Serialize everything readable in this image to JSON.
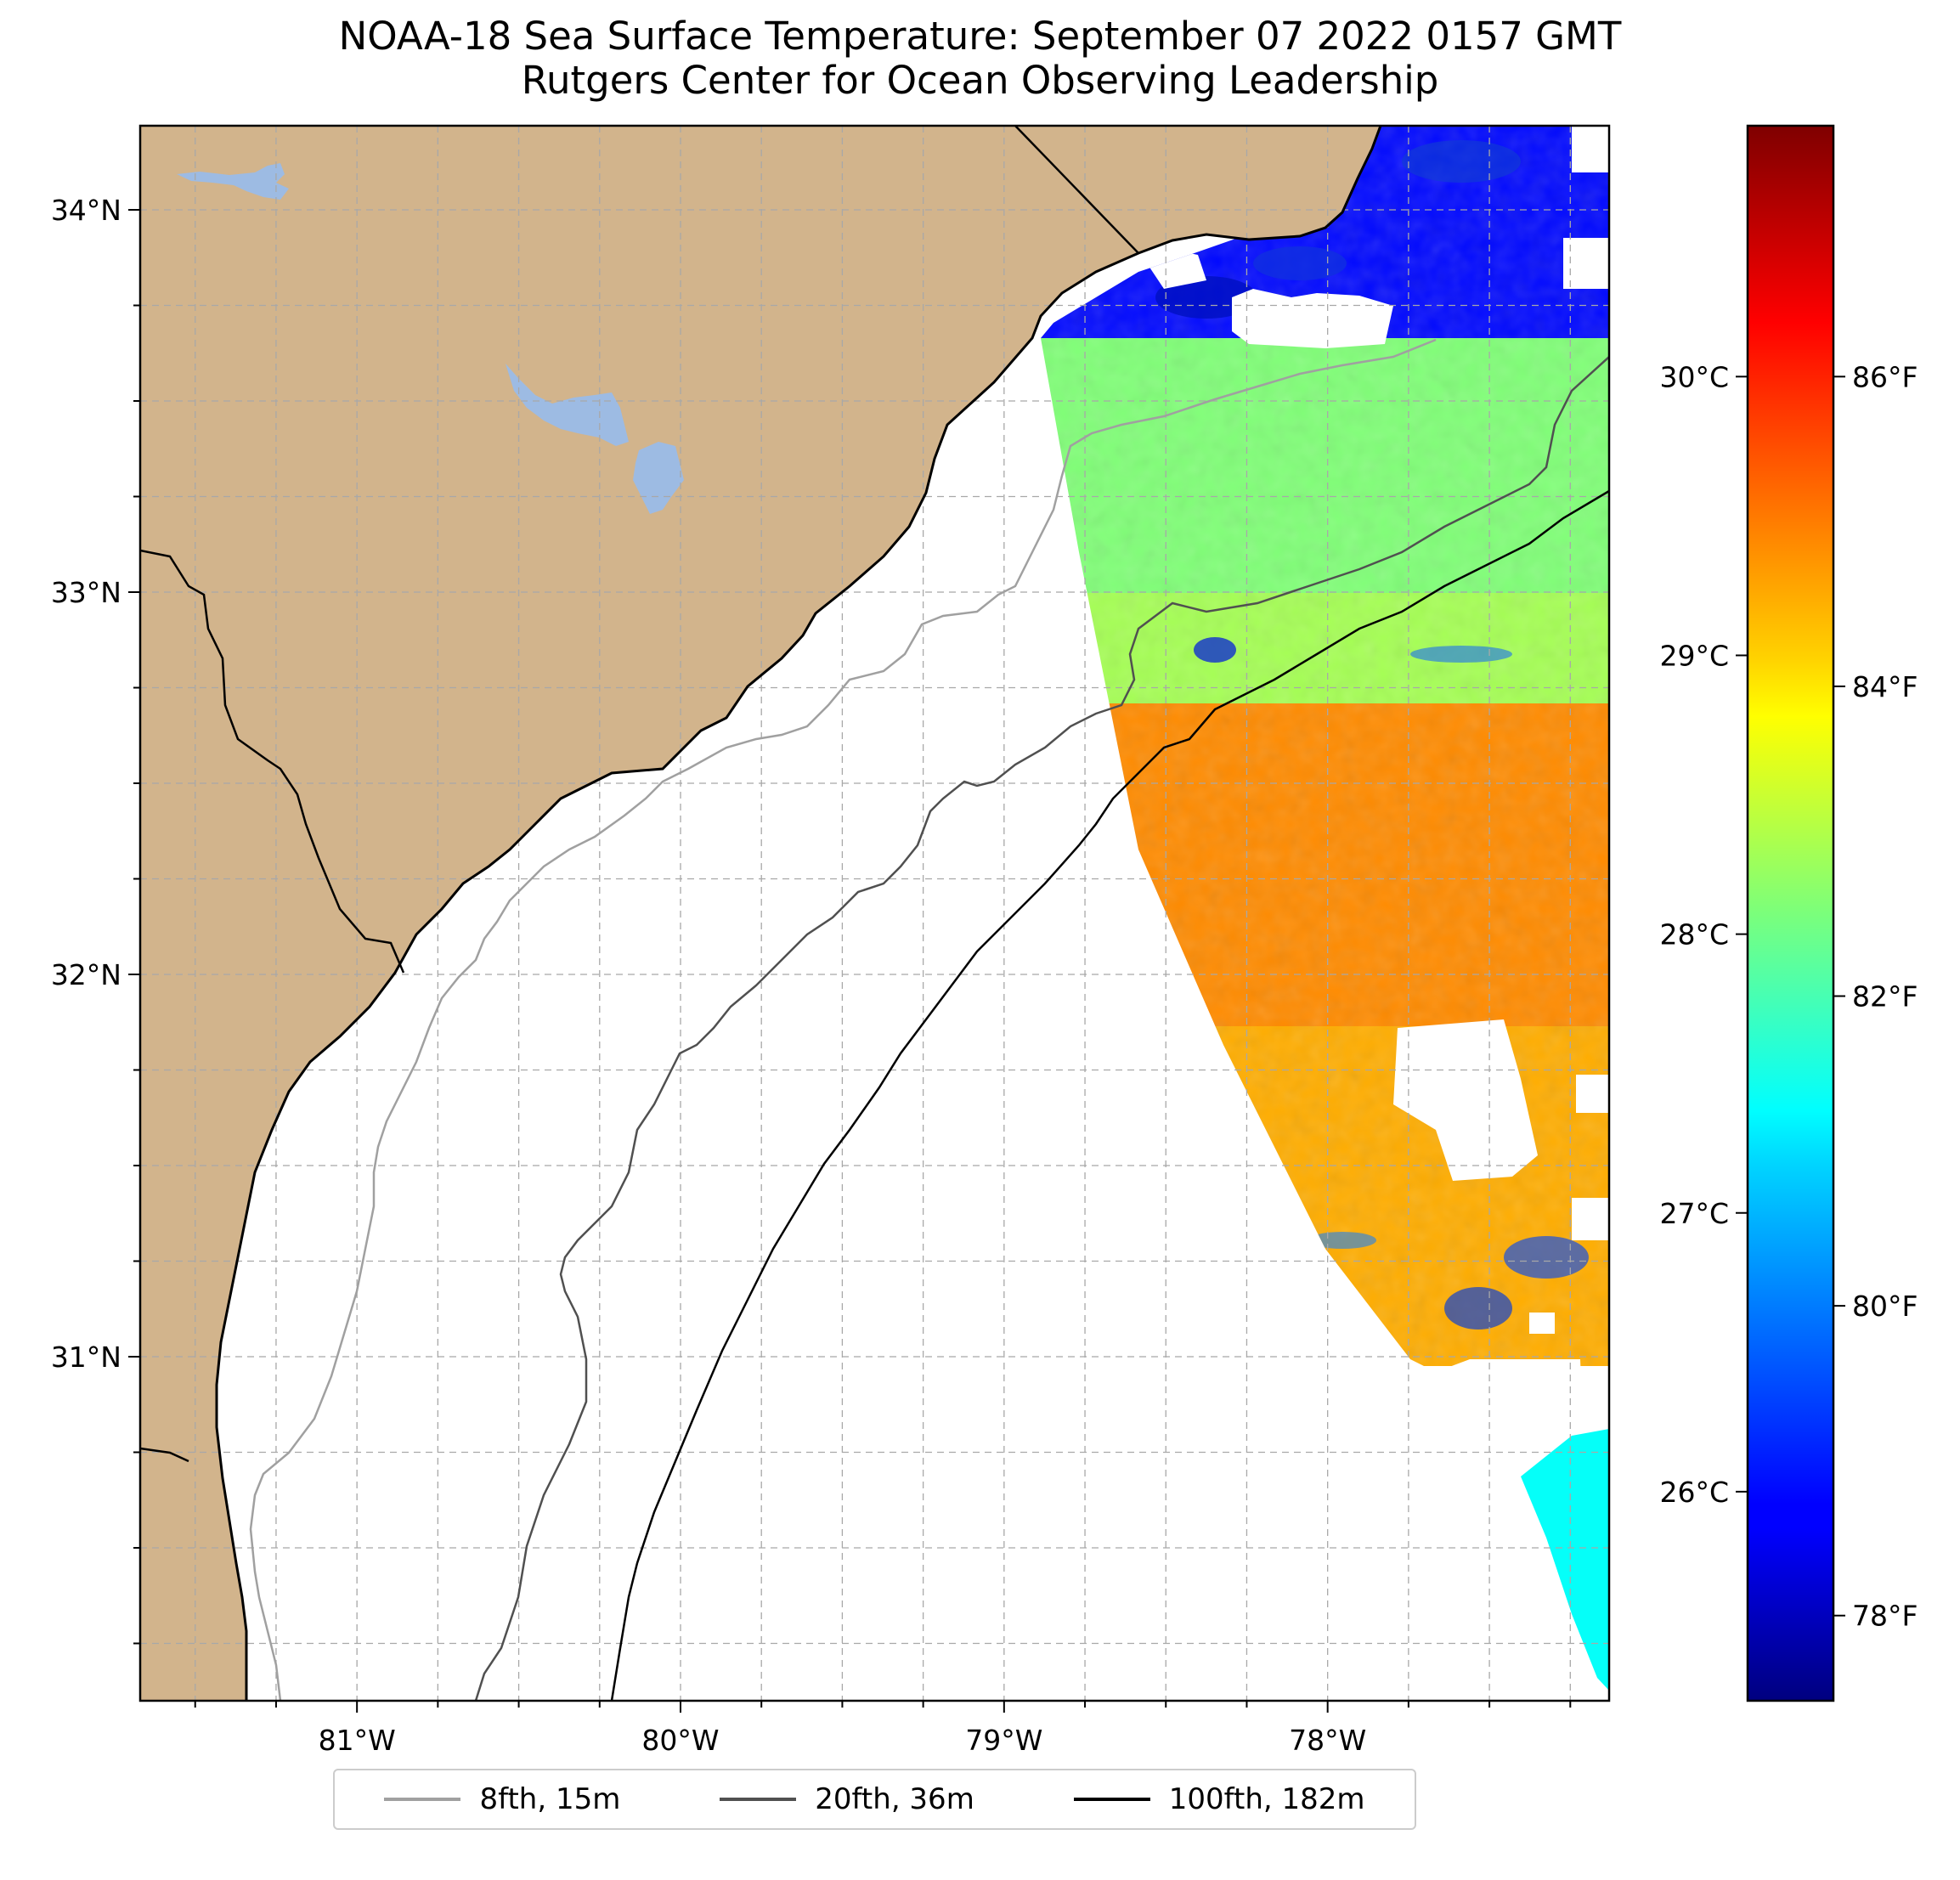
{
  "title": {
    "line1": "NOAA-18 Sea Surface Temperature: September 07 2022 0157 GMT",
    "line2": "Rutgers Center for Ocean Observing Leadership"
  },
  "colors": {
    "land": "#d2b48c",
    "lake": "#9dbbe3",
    "coast": "#000000",
    "grid": "#a8a8a8"
  },
  "chart_data": {
    "type": "heatmap",
    "title": "NOAA-18 Sea Surface Temperature: September 07 2022 0157 GMT",
    "subtitle": "Rutgers Center for Ocean Observing Leadership",
    "colormap": "jet",
    "map_extent": {
      "lon": [
        -81.67,
        -77.13
      ],
      "lat": [
        30.1,
        34.22
      ]
    },
    "x_ticks": [
      "81°W",
      "80°W",
      "79°W",
      "78°W"
    ],
    "x_tick_values": [
      -81,
      -80,
      -79,
      -78
    ],
    "y_ticks": [
      "34°N",
      "33°N",
      "32°N",
      "31°N"
    ],
    "y_tick_values": [
      34,
      33,
      32,
      31
    ],
    "colorbar_celsius_range": [
      25.25,
      30.9
    ],
    "colorbar_celsius_ticks": [
      "30°C",
      "29°C",
      "28°C",
      "27°C",
      "26°C"
    ],
    "colorbar_celsius_tick_values": [
      30,
      29,
      28,
      27,
      26
    ],
    "colorbar_fahrenheit_ticks": [
      "86°F",
      "84°F",
      "82°F",
      "80°F",
      "78°F"
    ],
    "colorbar_fahrenheit_tick_values": [
      86,
      84,
      82,
      80,
      78
    ],
    "sst_regions": [
      {
        "area": "nearshore north swath (lat > 33.5)",
        "temp_c": 26.0
      },
      {
        "area": "north swath (33.0–33.5)",
        "temp_c": 28.1
      },
      {
        "area": "central swath (32.6–33.0)",
        "temp_c": 28.3
      },
      {
        "area": "warm core (31.8–32.6)",
        "temp_c": 29.4
      },
      {
        "area": "south swath (31.0–31.8)",
        "temp_c": 29.2
      },
      {
        "area": "southern strip (30.1–30.7)",
        "temp_c": 27.4
      }
    ],
    "isobaths": [
      {
        "label": "8fth, 15m",
        "color": "#a0a0a0"
      },
      {
        "label": "20fth, 36m",
        "color": "#505050"
      },
      {
        "label": "100fth, 182m",
        "color": "#000000"
      }
    ]
  }
}
